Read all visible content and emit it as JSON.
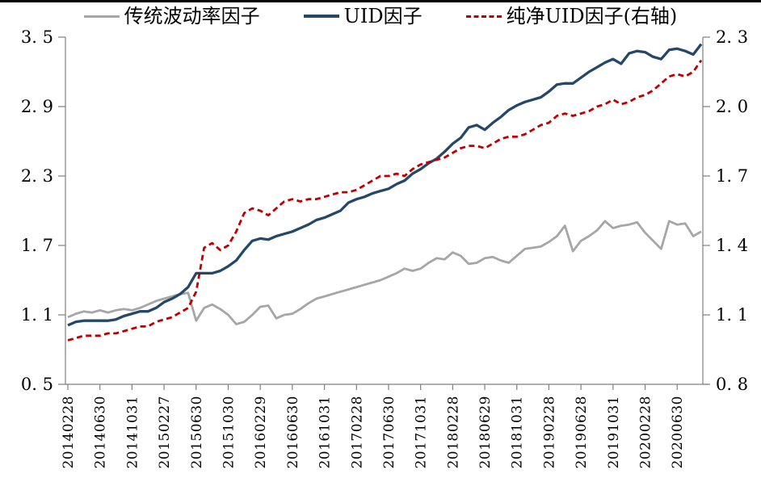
{
  "legend": {
    "items": [
      {
        "label": "传统波动率因子",
        "color": "#A6A6A6",
        "style": "solid"
      },
      {
        "label": "UID因子",
        "color": "#254769",
        "style": "solid"
      },
      {
        "label": "纯净UID因子(右轴)",
        "color": "#C00000",
        "style": "dashed"
      }
    ]
  },
  "chart_data": {
    "type": "line",
    "title": "",
    "grid": false,
    "legend_position": "top",
    "n_points": 80,
    "x_tick_step": 4,
    "x_tick_labels": [
      "20140228",
      "20140630",
      "20141031",
      "20150227",
      "20150630",
      "20151030",
      "20160229",
      "20160630",
      "20161031",
      "20170228",
      "20170630",
      "20171031",
      "20180228",
      "20180629",
      "20181031",
      "20190228",
      "20190628",
      "20191031",
      "20200228",
      "20200630"
    ],
    "left_axis": {
      "min": 0.5,
      "max": 3.5,
      "ticks": [
        {
          "label": "3. 5",
          "value": 3.5
        },
        {
          "label": "2. 9",
          "value": 2.9
        },
        {
          "label": "2. 3",
          "value": 2.3
        },
        {
          "label": "1. 7",
          "value": 1.7
        },
        {
          "label": "1. 1",
          "value": 1.1
        },
        {
          "label": "0. 5",
          "value": 0.5
        }
      ]
    },
    "right_axis": {
      "min": 0.8,
      "max": 2.3,
      "ticks": [
        {
          "label": "2. 3",
          "value": 2.3
        },
        {
          "label": "2. 0",
          "value": 2.0
        },
        {
          "label": "1. 7",
          "value": 1.7
        },
        {
          "label": "1. 4",
          "value": 1.4
        },
        {
          "label": "1. 1",
          "value": 1.1
        },
        {
          "label": "0. 8",
          "value": 0.8
        }
      ]
    },
    "series": [
      {
        "name": "传统波动率因子",
        "key": "traditional-volatility-factor",
        "axis": "left",
        "color": "#A6A6A6",
        "dash": null,
        "width": 2.8,
        "values": [
          1.08,
          1.11,
          1.13,
          1.12,
          1.14,
          1.12,
          1.14,
          1.15,
          1.14,
          1.16,
          1.19,
          1.22,
          1.24,
          1.26,
          1.28,
          1.29,
          1.05,
          1.16,
          1.19,
          1.15,
          1.1,
          1.02,
          1.04,
          1.1,
          1.17,
          1.18,
          1.07,
          1.1,
          1.11,
          1.15,
          1.2,
          1.24,
          1.26,
          1.28,
          1.3,
          1.32,
          1.34,
          1.36,
          1.38,
          1.4,
          1.43,
          1.46,
          1.5,
          1.48,
          1.5,
          1.55,
          1.59,
          1.58,
          1.64,
          1.61,
          1.54,
          1.55,
          1.59,
          1.6,
          1.57,
          1.55,
          1.61,
          1.67,
          1.68,
          1.69,
          1.73,
          1.78,
          1.87,
          1.65,
          1.74,
          1.78,
          1.83,
          1.91,
          1.85,
          1.87,
          1.88,
          1.9,
          1.81,
          1.74,
          1.67,
          1.91,
          1.88,
          1.89,
          1.78,
          1.82
        ]
      },
      {
        "name": "UID因子",
        "key": "uid-factor",
        "axis": "left",
        "color": "#254769",
        "dash": null,
        "width": 3.3,
        "values": [
          1.01,
          1.04,
          1.05,
          1.05,
          1.05,
          1.05,
          1.06,
          1.09,
          1.11,
          1.13,
          1.13,
          1.16,
          1.21,
          1.24,
          1.28,
          1.34,
          1.46,
          1.46,
          1.46,
          1.48,
          1.52,
          1.57,
          1.66,
          1.74,
          1.76,
          1.75,
          1.78,
          1.8,
          1.82,
          1.85,
          1.88,
          1.92,
          1.94,
          1.97,
          2.0,
          2.07,
          2.1,
          2.12,
          2.15,
          2.17,
          2.19,
          2.23,
          2.26,
          2.32,
          2.36,
          2.41,
          2.45,
          2.51,
          2.58,
          2.63,
          2.72,
          2.74,
          2.7,
          2.76,
          2.81,
          2.87,
          2.91,
          2.94,
          2.96,
          2.98,
          3.03,
          3.09,
          3.1,
          3.1,
          3.15,
          3.2,
          3.24,
          3.28,
          3.31,
          3.27,
          3.36,
          3.38,
          3.37,
          3.33,
          3.31,
          3.39,
          3.4,
          3.38,
          3.35,
          3.44
        ]
      },
      {
        "name": "纯净UID因子(右轴)",
        "key": "pure-uid-factor",
        "axis": "right",
        "color": "#C00000",
        "dash": [
          7,
          4.5
        ],
        "width": 2.8,
        "values": [
          0.99,
          1.0,
          1.01,
          1.01,
          1.01,
          1.02,
          1.02,
          1.03,
          1.04,
          1.05,
          1.05,
          1.07,
          1.08,
          1.09,
          1.11,
          1.13,
          1.2,
          1.39,
          1.41,
          1.38,
          1.4,
          1.46,
          1.54,
          1.56,
          1.55,
          1.53,
          1.56,
          1.59,
          1.6,
          1.59,
          1.6,
          1.6,
          1.61,
          1.62,
          1.63,
          1.63,
          1.64,
          1.66,
          1.68,
          1.7,
          1.7,
          1.71,
          1.7,
          1.73,
          1.75,
          1.76,
          1.77,
          1.78,
          1.8,
          1.82,
          1.83,
          1.83,
          1.82,
          1.84,
          1.86,
          1.87,
          1.87,
          1.88,
          1.9,
          1.92,
          1.93,
          1.96,
          1.97,
          1.96,
          1.97,
          1.98,
          2.0,
          2.01,
          2.03,
          2.01,
          2.02,
          2.04,
          2.05,
          2.07,
          2.1,
          2.13,
          2.14,
          2.13,
          2.15,
          2.2
        ]
      }
    ]
  }
}
